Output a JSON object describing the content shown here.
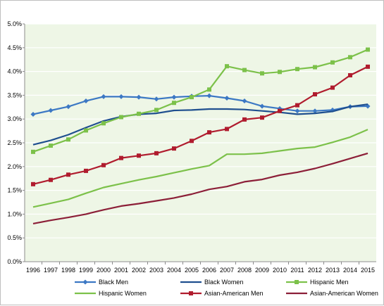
{
  "chart_data": {
    "type": "line",
    "title": "",
    "xlabel": "",
    "ylabel": "",
    "x": [
      "1996",
      "1997",
      "1998",
      "1999",
      "2000",
      "2001",
      "2002",
      "2003",
      "2004",
      "2005",
      "2006",
      "2007",
      "2008",
      "2009",
      "2010",
      "2011",
      "2012",
      "2013",
      "2014",
      "2015"
    ],
    "ylim": [
      0,
      5
    ],
    "ytick_values": [
      0,
      0.5,
      1,
      1.5,
      2,
      2.5,
      3,
      3.5,
      4,
      4.5,
      5
    ],
    "ytick_labels": [
      "0.0%",
      "0.5%",
      "1.0%",
      "1.5%",
      "2.0%",
      "2.5%",
      "3.0%",
      "3.5%",
      "4.0%",
      "4.5%",
      "5.0%"
    ],
    "grid": "horizontal",
    "plot_background": "#eef6e6",
    "legend_position": "bottom",
    "series": [
      {
        "name": "Black Men",
        "color": "#3c78c4",
        "marker": "diamond",
        "values": [
          3.1,
          3.18,
          3.26,
          3.38,
          3.47,
          3.47,
          3.46,
          3.42,
          3.46,
          3.48,
          3.49,
          3.44,
          3.38,
          3.27,
          3.22,
          3.17,
          3.17,
          3.19,
          3.26,
          3.27
        ]
      },
      {
        "name": "Black Women",
        "color": "#1f4f8f",
        "marker": "none",
        "values": [
          2.46,
          2.55,
          2.67,
          2.82,
          2.96,
          3.05,
          3.1,
          3.12,
          3.18,
          3.19,
          3.21,
          3.21,
          3.2,
          3.17,
          3.14,
          3.1,
          3.12,
          3.16,
          3.26,
          3.31
        ]
      },
      {
        "name": "Hispanic Men",
        "color": "#7cc14a",
        "marker": "square",
        "values": [
          2.31,
          2.44,
          2.57,
          2.76,
          2.91,
          3.04,
          3.11,
          3.19,
          3.34,
          3.46,
          3.62,
          4.11,
          4.03,
          3.96,
          3.99,
          4.05,
          4.09,
          4.19,
          4.3,
          4.46
        ]
      },
      {
        "name": "Hispanic Women",
        "color": "#7cc14a",
        "marker": "none",
        "values": [
          1.15,
          1.23,
          1.31,
          1.44,
          1.56,
          1.64,
          1.72,
          1.79,
          1.87,
          1.95,
          2.02,
          2.26,
          2.26,
          2.28,
          2.33,
          2.38,
          2.41,
          2.51,
          2.62,
          2.78
        ]
      },
      {
        "name": "Asian-American Men",
        "color": "#b01c2e",
        "marker": "square",
        "values": [
          1.63,
          1.72,
          1.83,
          1.91,
          2.03,
          2.18,
          2.23,
          2.28,
          2.38,
          2.54,
          2.72,
          2.79,
          2.99,
          3.03,
          3.17,
          3.29,
          3.52,
          3.66,
          3.92,
          4.1
        ]
      },
      {
        "name": "Asian-American Women",
        "color": "#8c1f38",
        "marker": "none",
        "values": [
          0.8,
          0.87,
          0.93,
          1.0,
          1.09,
          1.17,
          1.22,
          1.28,
          1.34,
          1.42,
          1.52,
          1.58,
          1.68,
          1.73,
          1.82,
          1.88,
          1.96,
          2.06,
          2.17,
          2.28
        ]
      }
    ]
  }
}
